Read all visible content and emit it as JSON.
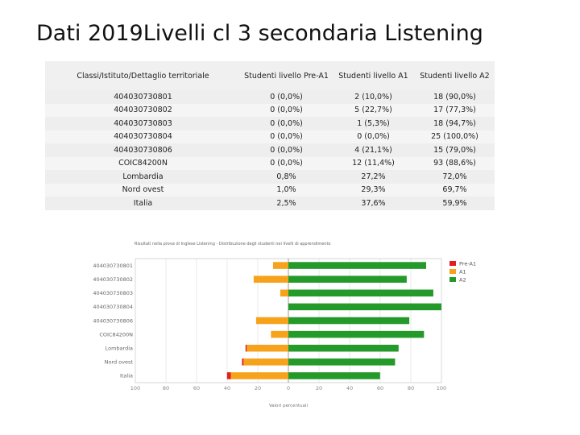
{
  "slide": {
    "title": "Dati 2019Livelli cl 3 secondaria Listening"
  },
  "table": {
    "headers": [
      "Classi/Istituto/Dettaglio territoriale",
      "Studenti livello Pre-A1",
      "Studenti livello A1",
      "Studenti livello A2"
    ],
    "rows": [
      [
        "404030730801",
        "0 (0,0%)",
        "2 (10,0%)",
        "18 (90,0%)"
      ],
      [
        "404030730802",
        "0 (0,0%)",
        "5 (22,7%)",
        "17 (77,3%)"
      ],
      [
        "404030730803",
        "0 (0,0%)",
        "1 (5,3%)",
        "18 (94,7%)"
      ],
      [
        "404030730804",
        "0 (0,0%)",
        "0 (0,0%)",
        "25 (100,0%)"
      ],
      [
        "404030730806",
        "0 (0,0%)",
        "4 (21,1%)",
        "15 (79,0%)"
      ],
      [
        "COIC84200N",
        "0 (0,0%)",
        "12 (11,4%)",
        "93 (88,6%)"
      ],
      [
        "Lombardia",
        "0,8%",
        "27,2%",
        "72,0%"
      ],
      [
        "Nord ovest",
        "1,0%",
        "29,3%",
        "69,7%"
      ],
      [
        "Italia",
        "2,5%",
        "37,6%",
        "59,9%"
      ]
    ]
  },
  "chart_data": {
    "type": "bar",
    "orientation": "horizontal-diverging",
    "title": "Risultati nella prova di Inglese Listening - Distribuzione degli studenti nei livelli di apprendimento",
    "categories": [
      "404030730801",
      "404030730802",
      "404030730803",
      "404030730804",
      "404030730806",
      "COIC84200N",
      "Lombardia",
      "Nord ovest",
      "Italia"
    ],
    "series": [
      {
        "name": "Pre-A1",
        "color": "#e02020",
        "side": "negative",
        "values": [
          0,
          0,
          0,
          0,
          0,
          0,
          0.8,
          1.0,
          2.5
        ]
      },
      {
        "name": "A1",
        "color": "#f7a21b",
        "side": "negative",
        "values": [
          10.0,
          22.7,
          5.3,
          0,
          21.1,
          11.4,
          27.2,
          29.3,
          37.6
        ]
      },
      {
        "name": "A2",
        "color": "#249a2a",
        "side": "positive",
        "values": [
          90.0,
          77.3,
          94.7,
          100.0,
          79.0,
          88.6,
          72.0,
          69.7,
          59.9
        ]
      }
    ],
    "xlim": [
      -100,
      100
    ],
    "xticks": [
      100,
      80,
      60,
      40,
      20,
      0,
      20,
      40,
      60,
      80,
      100
    ],
    "xlabel": "Valori percentuali",
    "legend_position": "right"
  }
}
